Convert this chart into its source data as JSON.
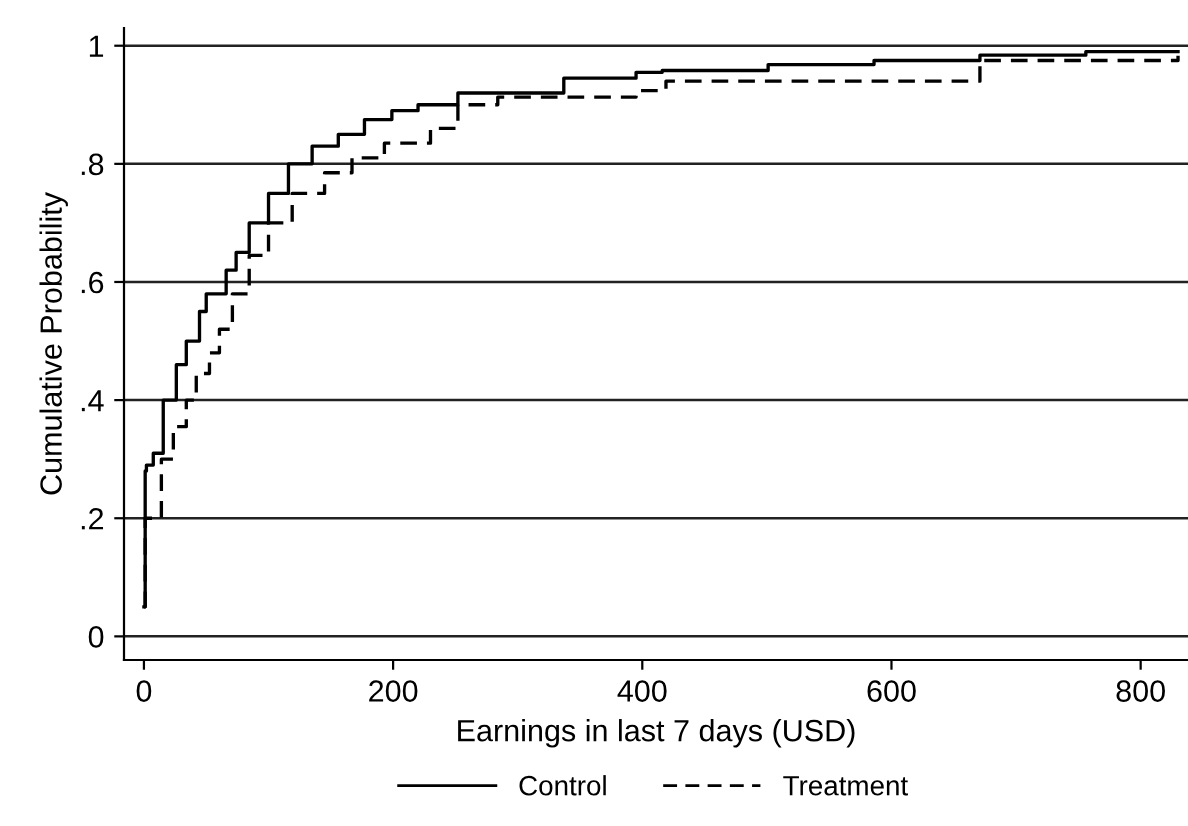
{
  "chart_data": {
    "type": "step",
    "xlabel": "Earnings in last 7 days (USD)",
    "ylabel": "Cumulative Probability",
    "xlim": [
      -16,
      838
    ],
    "ylim": [
      -0.04,
      1.03
    ],
    "xticks": [
      0,
      200,
      400,
      600,
      800
    ],
    "yticks": [
      0,
      {
        "value": 0.2,
        "label": ".2"
      },
      {
        "value": 0.4,
        "label": ".4"
      },
      {
        "value": 0.6,
        "label": ".6"
      },
      {
        "value": 0.8,
        "label": ".8"
      },
      1
    ],
    "grid": "y",
    "legend": "bottom",
    "marker": "none",
    "series": [
      {
        "name": "Control",
        "color": "#000000",
        "line_style": "solid",
        "x": [
          0,
          1,
          2,
          7.5,
          15.5,
          26,
          34,
          44.6,
          50,
          66,
          74,
          84.5,
          100,
          116,
          135,
          156,
          177,
          199,
          220,
          252,
          337,
          395,
          416,
          501,
          586,
          671,
          756,
          830
        ],
        "values": [
          0.05,
          0.28,
          0.29,
          0.31,
          0.4,
          0.46,
          0.5,
          0.55,
          0.58,
          0.62,
          0.65,
          0.7,
          0.75,
          0.8,
          0.83,
          0.85,
          0.875,
          0.89,
          0.9,
          0.92,
          0.945,
          0.955,
          0.958,
          0.968,
          0.975,
          0.984,
          0.99,
          0.99
        ]
      },
      {
        "name": "Treatment",
        "color": "#000000",
        "line_style": "dashed",
        "x": [
          0,
          1,
          14,
          23.6,
          34,
          42,
          52.6,
          60.6,
          71,
          84.5,
          100,
          119,
          145,
          167,
          193,
          230,
          252,
          284,
          395,
          419,
          671,
          830
        ],
        "values": [
          0.05,
          0.2,
          0.3,
          0.355,
          0.4,
          0.445,
          0.48,
          0.52,
          0.58,
          0.645,
          0.7,
          0.75,
          0.785,
          0.81,
          0.835,
          0.86,
          0.9,
          0.913,
          0.924,
          0.94,
          0.975,
          0.983
        ]
      }
    ]
  }
}
